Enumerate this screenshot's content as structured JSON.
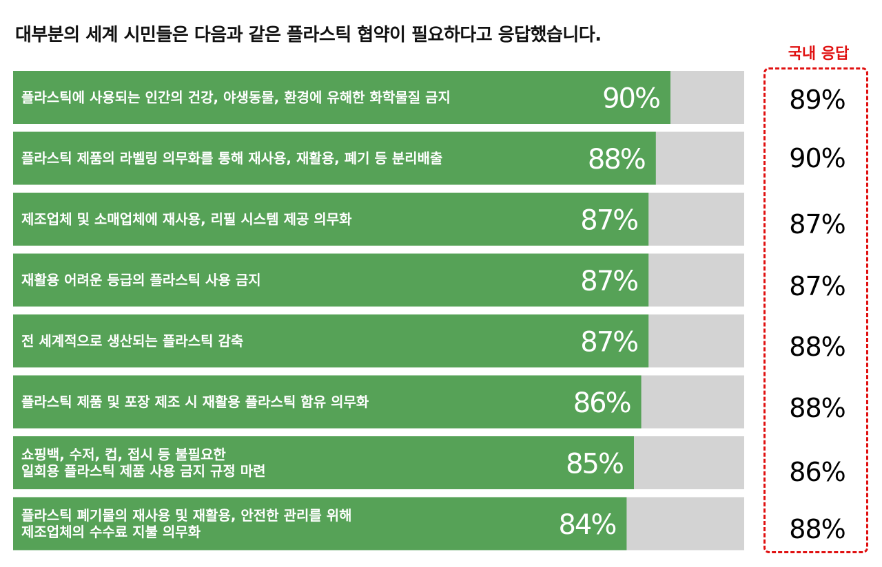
{
  "title": "대부분의 세계 시민들은 다음과 같은 플라스틱 협약이 필요하다고 응답했습니다.",
  "domestic_header": "국내 응답",
  "colors": {
    "bar": "#56a257",
    "track": "#d3d3d3",
    "accent": "#e01010"
  },
  "chart_data": {
    "type": "bar",
    "orientation": "horizontal",
    "xlim": [
      0,
      100
    ],
    "categories": [
      [
        "플라스틱에 사용되는 인간의 건강, 야생동물, 환경에 유해한 화학물질 금지"
      ],
      [
        "플라스틱 제품의 라벨링 의무화를 통해 재사용, 재활용, 폐기 등 분리배출"
      ],
      [
        "제조업체 및 소매업체에 재사용, 리필 시스템 제공 의무화"
      ],
      [
        "재활용 어려운 등급의 플라스틱 사용 금지"
      ],
      [
        "전 세계적으로 생산되는 플라스틱 감축"
      ],
      [
        "플라스틱 제품 및 포장 제조 시 재활용 플라스틱 함유 의무화"
      ],
      [
        "쇼핑백, 수저, 컵, 접시 등 불필요한",
        "일회용 플라스틱 제품 사용 금지 규정 마련"
      ],
      [
        "플라스틱 폐기물의 재사용 및 재활용, 안전한 관리를 위해",
        "제조업체의 수수료 지불 의무화"
      ]
    ],
    "series": [
      {
        "values": [
          90,
          88,
          87,
          87,
          87,
          86,
          85,
          84
        ],
        "labels": [
          "90%",
          "88%",
          "87%",
          "87%",
          "87%",
          "86%",
          "85%",
          "84%"
        ]
      },
      {
        "name": "국내 응답",
        "values": [
          89,
          90,
          87,
          87,
          88,
          88,
          86,
          88
        ],
        "labels": [
          "89%",
          "90%",
          "87%",
          "87%",
          "88%",
          "88%",
          "86%",
          "88%"
        ]
      }
    ]
  }
}
